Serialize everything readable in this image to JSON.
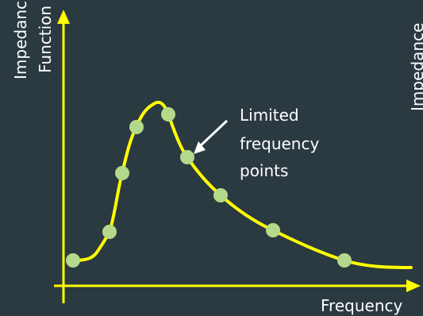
{
  "diagram": {
    "y_axis_label_line1": "Impedance",
    "y_axis_label_line2": "Function",
    "x_axis_label": "Frequency",
    "right_edge_label": "Impedance",
    "annotation": {
      "lines": [
        "Limited",
        "frequency",
        "points"
      ]
    },
    "colors": {
      "background": "#2b3940",
      "axis": "#ffff00",
      "curve": "#ffff00",
      "points": "#b5d98a",
      "text": "#ffffff"
    }
  }
}
